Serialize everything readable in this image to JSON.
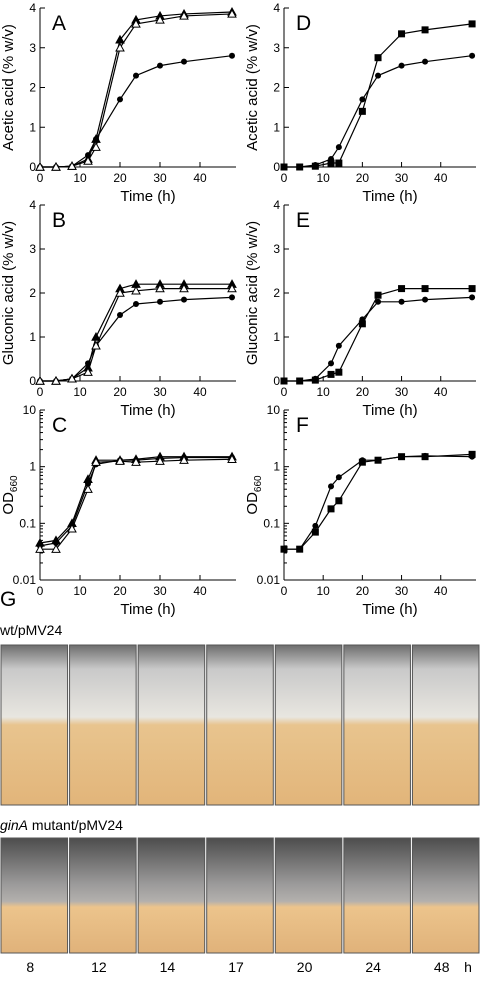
{
  "chart_data": [
    {
      "type": "line",
      "panel": "A",
      "xlabel": "Time (h)",
      "ylabel": "Acetic acid (% w/v)",
      "x": [
        0,
        4,
        8,
        12,
        14,
        20,
        24,
        30,
        36,
        48
      ],
      "xlim": [
        0,
        49
      ],
      "xticks": [
        0,
        10,
        20,
        30,
        40
      ],
      "ylim": [
        0,
        4
      ],
      "yticks": [
        0,
        1,
        2,
        3,
        4
      ],
      "log": false,
      "series": [
        {
          "marker": "circle",
          "color": "#000000",
          "values": [
            0,
            0,
            0.02,
            0.3,
            0.7,
            1.7,
            2.3,
            2.55,
            2.65,
            2.8
          ]
        },
        {
          "marker": "triangle",
          "color": "#000000",
          "values": [
            0,
            0,
            0.02,
            0.2,
            0.7,
            3.2,
            3.7,
            3.8,
            3.85,
            3.9
          ]
        },
        {
          "marker": "triangle-open",
          "color": "#000000",
          "values": [
            0,
            0,
            0.02,
            0.15,
            0.5,
            3.0,
            3.6,
            3.7,
            3.8,
            3.85
          ]
        }
      ]
    },
    {
      "type": "line",
      "panel": "D",
      "xlabel": "Time (h)",
      "ylabel": "Acetic acid (% w/v)",
      "x": [
        0,
        4,
        8,
        12,
        14,
        20,
        24,
        30,
        36,
        48
      ],
      "xlim": [
        0,
        49
      ],
      "xticks": [
        0,
        10,
        20,
        30,
        40
      ],
      "ylim": [
        0,
        4
      ],
      "yticks": [
        0,
        1,
        2,
        3,
        4
      ],
      "log": false,
      "series": [
        {
          "marker": "circle",
          "color": "#000000",
          "values": [
            0,
            0,
            0.05,
            0.2,
            0.5,
            1.7,
            2.3,
            2.55,
            2.65,
            2.8
          ]
        },
        {
          "marker": "square",
          "color": "#000000",
          "values": [
            0,
            0,
            0.02,
            0.1,
            0.1,
            1.4,
            2.75,
            3.35,
            3.45,
            3.6
          ]
        }
      ]
    },
    {
      "type": "line",
      "panel": "B",
      "xlabel": "Time (h)",
      "ylabel": "Gluconic acid (% w/v)",
      "x": [
        0,
        4,
        8,
        12,
        14,
        20,
        24,
        30,
        36,
        48
      ],
      "xlim": [
        0,
        49
      ],
      "xticks": [
        0,
        10,
        20,
        30,
        40
      ],
      "ylim": [
        0,
        4
      ],
      "yticks": [
        0,
        1,
        2,
        3,
        4
      ],
      "log": false,
      "series": [
        {
          "marker": "circle",
          "color": "#000000",
          "values": [
            0,
            0,
            0.05,
            0.4,
            0.8,
            1.5,
            1.75,
            1.8,
            1.85,
            1.9
          ]
        },
        {
          "marker": "triangle",
          "color": "#000000",
          "values": [
            0,
            0,
            0.05,
            0.3,
            1.0,
            2.1,
            2.2,
            2.2,
            2.2,
            2.2
          ]
        },
        {
          "marker": "triangle-open",
          "color": "#000000",
          "values": [
            0,
            0,
            0.05,
            0.2,
            0.8,
            2.0,
            2.05,
            2.1,
            2.1,
            2.1
          ]
        }
      ]
    },
    {
      "type": "line",
      "panel": "E",
      "xlabel": "Time (h)",
      "ylabel": "Gluconic acid (% w/v)",
      "x": [
        0,
        4,
        8,
        12,
        14,
        20,
        24,
        30,
        36,
        48
      ],
      "xlim": [
        0,
        49
      ],
      "xticks": [
        0,
        10,
        20,
        30,
        40
      ],
      "ylim": [
        0,
        4
      ],
      "yticks": [
        0,
        1,
        2,
        3,
        4
      ],
      "log": false,
      "series": [
        {
          "marker": "circle",
          "color": "#000000",
          "values": [
            0,
            0,
            0.05,
            0.4,
            0.8,
            1.4,
            1.8,
            1.8,
            1.85,
            1.9
          ]
        },
        {
          "marker": "square",
          "color": "#000000",
          "values": [
            0,
            0,
            0.02,
            0.15,
            0.2,
            1.3,
            1.95,
            2.1,
            2.1,
            2.1
          ]
        }
      ]
    },
    {
      "type": "line",
      "panel": "C",
      "xlabel": "Time (h)",
      "ylabel": "OD",
      "ylabel_sub": "660",
      "x": [
        0,
        4,
        8,
        12,
        14,
        20,
        24,
        30,
        36,
        48
      ],
      "xlim": [
        0,
        49
      ],
      "xticks": [
        0,
        10,
        20,
        30,
        40
      ],
      "ylim": [
        0.01,
        10
      ],
      "yticks": [
        0.01,
        0.1,
        1,
        10
      ],
      "log": true,
      "series": [
        {
          "marker": "circle",
          "color": "#000000",
          "values": [
            0.04,
            0.045,
            0.09,
            0.5,
            1.1,
            1.3,
            1.3,
            1.4,
            1.45,
            1.45
          ]
        },
        {
          "marker": "triangle",
          "color": "#000000",
          "values": [
            0.045,
            0.05,
            0.1,
            0.6,
            1.3,
            1.3,
            1.35,
            1.5,
            1.5,
            1.5
          ]
        },
        {
          "marker": "triangle-open",
          "color": "#000000",
          "values": [
            0.035,
            0.035,
            0.08,
            0.4,
            1.2,
            1.25,
            1.2,
            1.25,
            1.3,
            1.35
          ]
        }
      ]
    },
    {
      "type": "line",
      "panel": "F",
      "xlabel": "Time (h)",
      "ylabel": "OD",
      "ylabel_sub": "660",
      "x": [
        0,
        4,
        8,
        12,
        14,
        20,
        24,
        30,
        36,
        48
      ],
      "xlim": [
        0,
        49
      ],
      "xticks": [
        0,
        10,
        20,
        30,
        40
      ],
      "ylim": [
        0.01,
        10
      ],
      "yticks": [
        0.01,
        0.1,
        1,
        10
      ],
      "log": true,
      "series": [
        {
          "marker": "circle",
          "color": "#000000",
          "values": [
            0.035,
            0.035,
            0.09,
            0.45,
            0.65,
            1.3,
            1.3,
            1.5,
            1.55,
            1.5
          ]
        },
        {
          "marker": "square",
          "color": "#000000",
          "values": [
            0.035,
            0.035,
            0.07,
            0.18,
            0.25,
            1.2,
            1.3,
            1.5,
            1.5,
            1.65
          ]
        }
      ]
    }
  ],
  "photo_panel": {
    "panel": "G",
    "row1_label": "wt/pMV24",
    "row2_label_italic": "ginA",
    "row2_label_rest": " mutant/pMV24",
    "time_labels": [
      "8",
      "12",
      "14",
      "17",
      "20",
      "24",
      "48",
      "h"
    ]
  }
}
